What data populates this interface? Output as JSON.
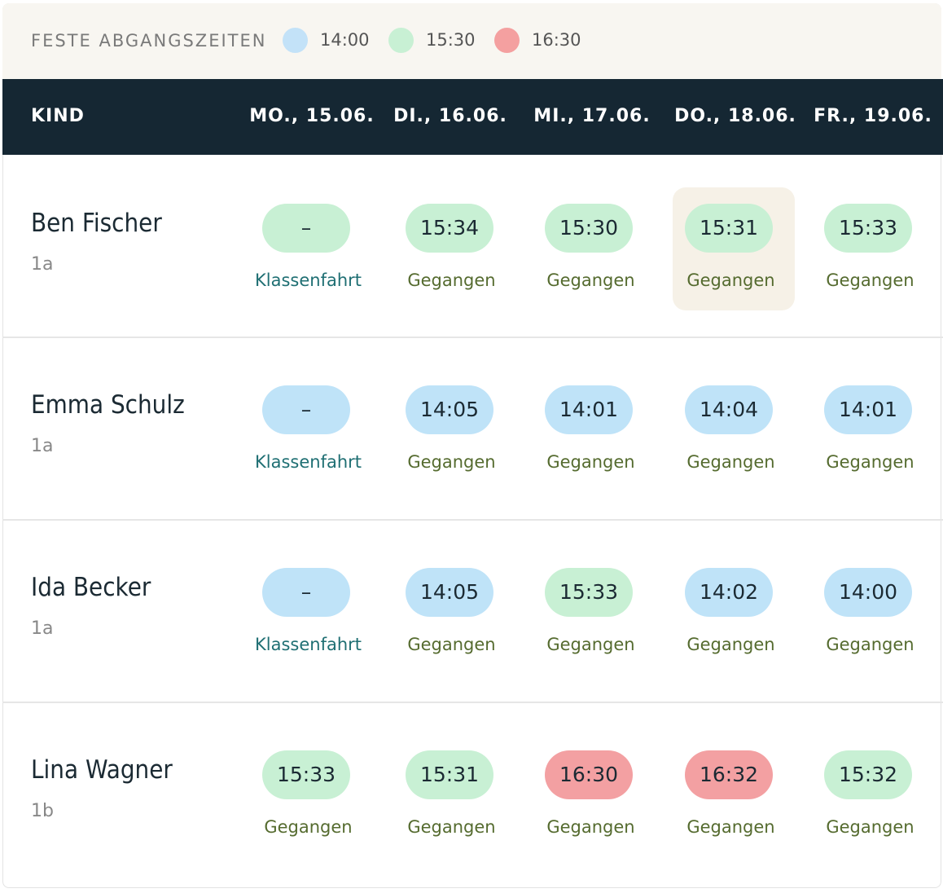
{
  "legend": {
    "title": "FESTE ABGANGSZEITEN",
    "items": [
      {
        "label": "14:00",
        "color": "#c3e2f8"
      },
      {
        "label": "15:30",
        "color": "#c8f0d4"
      },
      {
        "label": "16:30",
        "color": "#f4a0a0"
      }
    ]
  },
  "table": {
    "headers": [
      "KIND",
      "MO., 15.06.",
      "DI., 16.06.",
      "MI., 17.06.",
      "DO., 18.06.",
      "FR., 19.06."
    ],
    "rows": [
      {
        "name": "Ben Fischer",
        "class": "1a",
        "cells": [
          {
            "time": "–",
            "status": "Klassenfahrt",
            "color": "#c8f0d4",
            "status_color": "#1f6f73"
          },
          {
            "time": "15:34",
            "status": "Gegangen",
            "color": "#c8f0d4",
            "status_color": "#556b2f"
          },
          {
            "time": "15:30",
            "status": "Gegangen",
            "color": "#c8f0d4",
            "status_color": "#556b2f"
          },
          {
            "time": "15:31",
            "status": "Gegangen",
            "color": "#c8f0d4",
            "status_color": "#556b2f",
            "highlight": true
          },
          {
            "time": "15:33",
            "status": "Gegangen",
            "color": "#c8f0d4",
            "status_color": "#556b2f"
          }
        ]
      },
      {
        "name": "Emma Schulz",
        "class": "1a",
        "cells": [
          {
            "time": "–",
            "status": "Klassenfahrt",
            "color": "#bfe3f8",
            "status_color": "#1f6f73"
          },
          {
            "time": "14:05",
            "status": "Gegangen",
            "color": "#bfe3f8",
            "status_color": "#556b2f"
          },
          {
            "time": "14:01",
            "status": "Gegangen",
            "color": "#bfe3f8",
            "status_color": "#556b2f"
          },
          {
            "time": "14:04",
            "status": "Gegangen",
            "color": "#bfe3f8",
            "status_color": "#556b2f"
          },
          {
            "time": "14:01",
            "status": "Gegangen",
            "color": "#bfe3f8",
            "status_color": "#556b2f"
          }
        ]
      },
      {
        "name": "Ida Becker",
        "class": "1a",
        "cells": [
          {
            "time": "–",
            "status": "Klassenfahrt",
            "color": "#bfe3f8",
            "status_color": "#1f6f73"
          },
          {
            "time": "14:05",
            "status": "Gegangen",
            "color": "#bfe3f8",
            "status_color": "#556b2f"
          },
          {
            "time": "15:33",
            "status": "Gegangen",
            "color": "#c8f0d4",
            "status_color": "#556b2f"
          },
          {
            "time": "14:02",
            "status": "Gegangen",
            "color": "#bfe3f8",
            "status_color": "#556b2f"
          },
          {
            "time": "14:00",
            "status": "Gegangen",
            "color": "#bfe3f8",
            "status_color": "#556b2f"
          }
        ]
      },
      {
        "name": "Lina Wagner",
        "class": "1b",
        "cells": [
          {
            "time": "15:33",
            "status": "Gegangen",
            "color": "#c8f0d4",
            "status_color": "#556b2f"
          },
          {
            "time": "15:31",
            "status": "Gegangen",
            "color": "#c8f0d4",
            "status_color": "#556b2f"
          },
          {
            "time": "16:30",
            "status": "Gegangen",
            "color": "#f3a0a2",
            "status_color": "#556b2f"
          },
          {
            "time": "16:32",
            "status": "Gegangen",
            "color": "#f3a0a2",
            "status_color": "#556b2f"
          },
          {
            "time": "15:32",
            "status": "Gegangen",
            "color": "#c8f0d4",
            "status_color": "#556b2f"
          }
        ]
      }
    ]
  }
}
